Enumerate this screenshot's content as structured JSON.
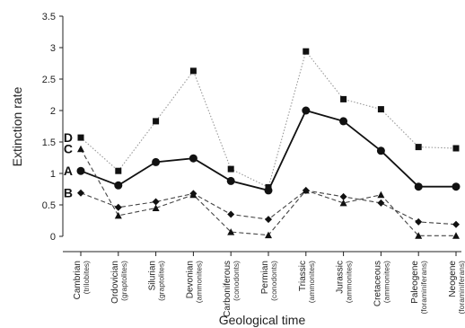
{
  "chart_data": {
    "type": "line",
    "xlabel": "Geological time",
    "ylabel": "Extinction rate",
    "ylim": [
      0,
      3.5
    ],
    "yticks": [
      "0",
      "0.5",
      "1",
      "1.5",
      "2",
      "2.5",
      "3",
      "3.5"
    ],
    "grid": false,
    "categories": [
      {
        "period": "Cambrian",
        "group": "(trilobites)"
      },
      {
        "period": "Ordovician",
        "group": "(graptolites)"
      },
      {
        "period": "Silurian",
        "group": "(graptolites)"
      },
      {
        "period": "Devonian",
        "group": "(ammonites)"
      },
      {
        "period": "Carboniferous",
        "group": "(conodonts)"
      },
      {
        "period": "Permian",
        "group": "(conodonts)"
      },
      {
        "period": "Triassic",
        "group": "(ammonites)"
      },
      {
        "period": "Jurassic",
        "group": "(ammonites)"
      },
      {
        "period": "Cretaceous",
        "group": "(ammonites)"
      },
      {
        "period": "Paleogene",
        "group": "(foraminiferans)"
      },
      {
        "period": "Neogene",
        "group": "(foraminiferans)"
      }
    ],
    "series": [
      {
        "name": "D",
        "marker": "square",
        "line": "dotted",
        "color": "#999999",
        "values": [
          1.57,
          1.04,
          1.83,
          2.63,
          1.07,
          0.78,
          2.94,
          2.18,
          2.02,
          1.42,
          1.4
        ]
      },
      {
        "name": "A",
        "marker": "circle",
        "line": "solid",
        "color": "#111111",
        "values": [
          1.04,
          0.81,
          1.18,
          1.24,
          0.88,
          0.73,
          2.0,
          1.83,
          1.36,
          0.79,
          0.79
        ]
      },
      {
        "name": "C",
        "marker": "triangle",
        "line": "dashed",
        "color": "#444444",
        "values": [
          1.39,
          0.33,
          0.45,
          0.66,
          0.07,
          0.02,
          0.73,
          0.53,
          0.66,
          0.01,
          0.01
        ]
      },
      {
        "name": "B",
        "marker": "diamond",
        "line": "dashed",
        "color": "#444444",
        "values": [
          0.69,
          0.46,
          0.55,
          0.68,
          0.35,
          0.27,
          0.73,
          0.63,
          0.53,
          0.23,
          0.19
        ]
      }
    ]
  }
}
